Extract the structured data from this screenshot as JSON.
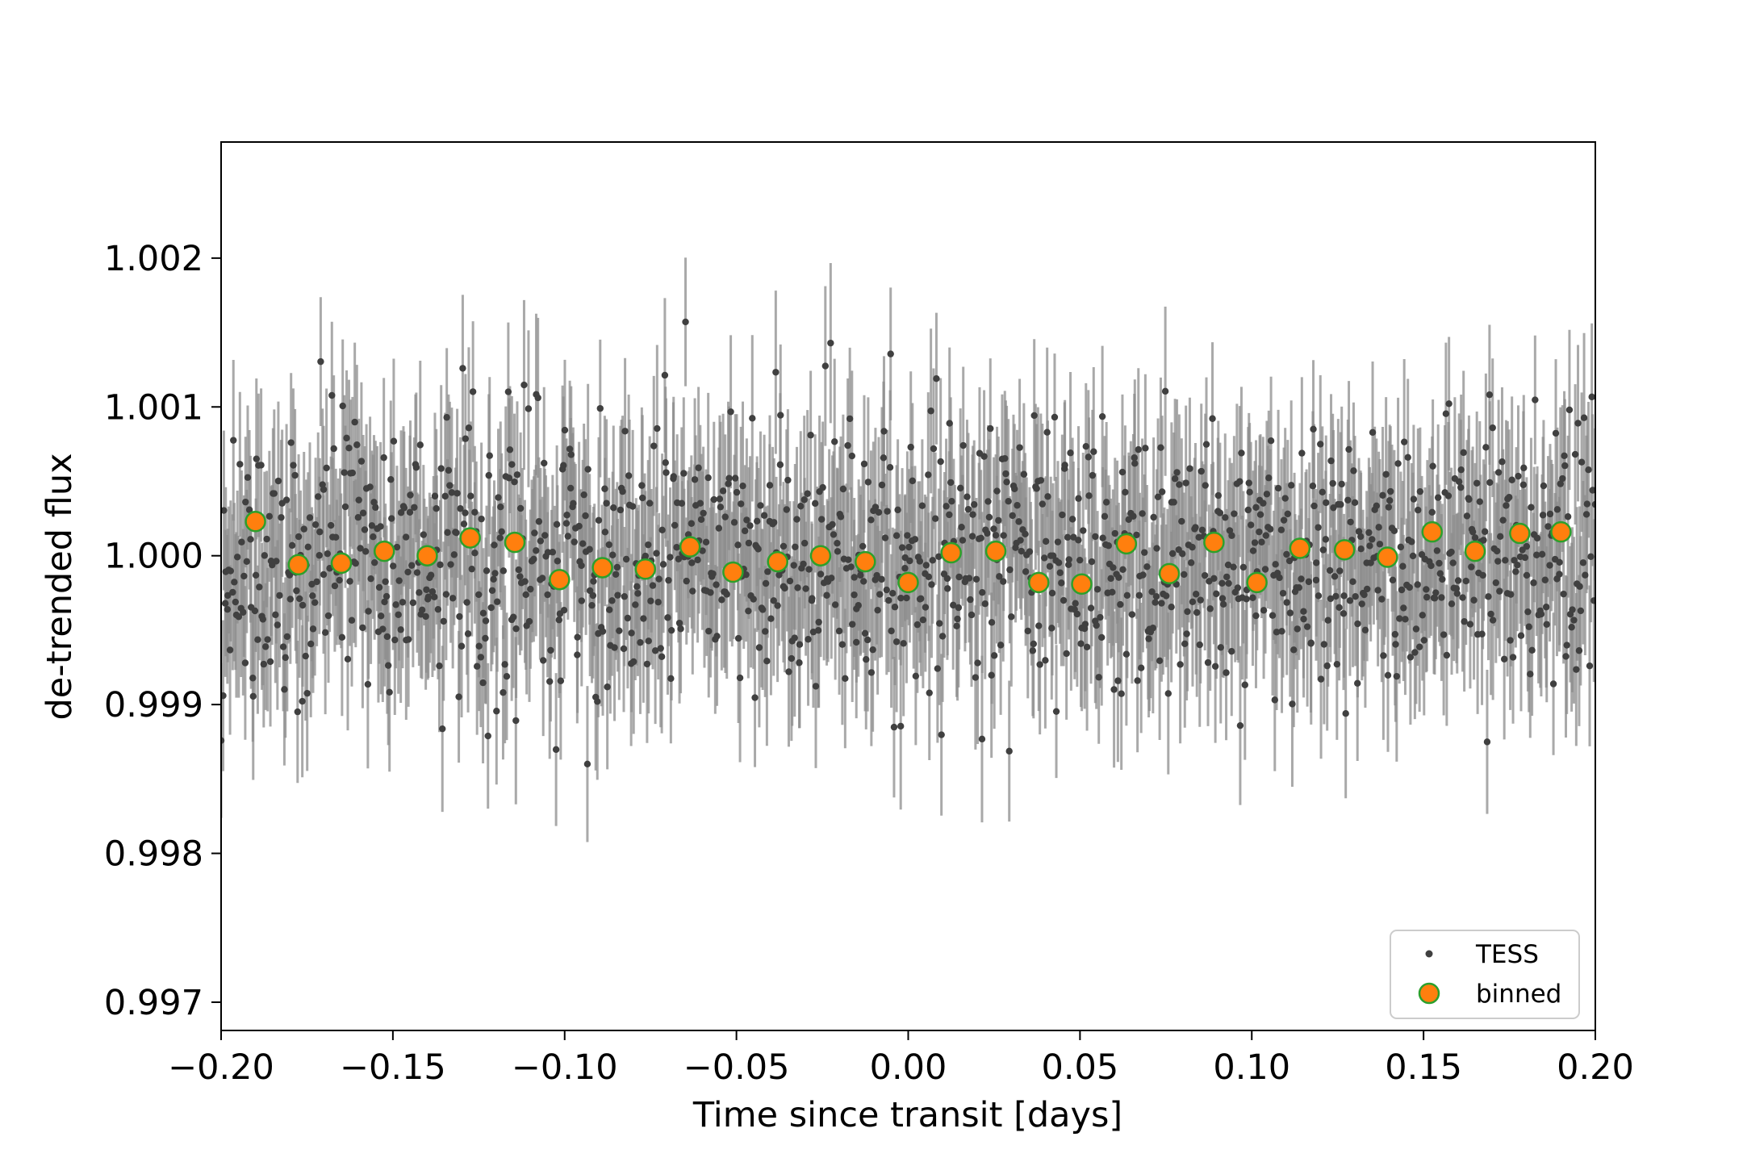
{
  "chart_data": {
    "type": "scatter",
    "xlabel": "Time since transit [days]",
    "ylabel": "de-trended flux",
    "xlim": [
      -0.2,
      0.2
    ],
    "ylim": [
      0.99681,
      1.00278
    ],
    "x_ticks": [
      -0.2,
      -0.15,
      -0.1,
      -0.05,
      0.0,
      0.05,
      0.1,
      0.15,
      0.2
    ],
    "x_tick_labels": [
      "−0.20",
      "−0.15",
      "−0.10",
      "−0.05",
      "0.00",
      "0.05",
      "0.10",
      "0.15",
      "0.20"
    ],
    "y_ticks": [
      0.997,
      0.998,
      0.999,
      1.0,
      1.001,
      1.002
    ],
    "y_tick_labels": [
      "0.997",
      "0.998",
      "0.999",
      "1.000",
      "1.001",
      "1.002"
    ],
    "grid": false,
    "legend": {
      "placement": "bottom-right",
      "entries": [
        "TESS",
        "binned"
      ]
    },
    "colors": {
      "tess": "#404040",
      "errorbar": "#8c8c8c",
      "binned_fill": "#ff7f0e",
      "binned_edge": "#2ca02c"
    },
    "tess_summary": {
      "points_shown": 1300,
      "x_range": [
        -0.2,
        0.2
      ],
      "center_flux": 1.0,
      "scatter_sigma": 0.00045,
      "typical_error": 0.0005
    },
    "series": [
      {
        "name": "binned",
        "x": [
          -0.19,
          -0.1775,
          -0.165,
          -0.1525,
          -0.14,
          -0.1275,
          -0.1145,
          -0.1015,
          -0.089,
          -0.0765,
          -0.0635,
          -0.051,
          -0.038,
          -0.0255,
          -0.0125,
          0.0,
          0.0125,
          0.0255,
          0.038,
          0.0505,
          0.0635,
          0.076,
          0.089,
          0.1015,
          0.114,
          0.127,
          0.1395,
          0.1525,
          0.165,
          0.178,
          0.19
        ],
        "y": [
          1.00023,
          0.99994,
          0.99995,
          1.00003,
          1.0,
          1.00012,
          1.00009,
          0.99984,
          0.99992,
          0.99991,
          1.00006,
          0.99989,
          0.99996,
          1.0,
          0.99996,
          0.99982,
          1.00002,
          1.00003,
          0.99982,
          0.99981,
          1.00008,
          0.99988,
          1.00009,
          0.99982,
          1.00005,
          1.00004,
          0.99999,
          1.00016,
          1.00003,
          1.00015,
          1.00016
        ]
      }
    ]
  }
}
